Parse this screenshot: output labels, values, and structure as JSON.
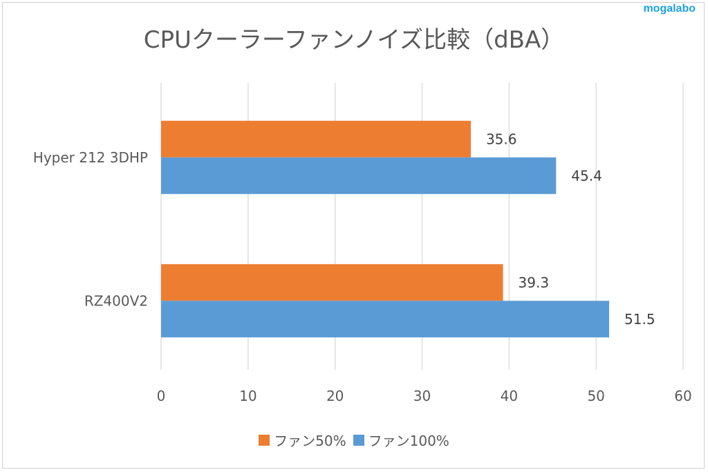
{
  "watermark": "mogalabo",
  "chart_data": {
    "type": "bar",
    "orientation": "horizontal",
    "title": "CPUクーラーファンノイズ比較（dBA）",
    "categories": [
      "Hyper 212 3DHP",
      "RZ400V2"
    ],
    "series": [
      {
        "name": "ファン50%",
        "color": "#ed7d31",
        "values": [
          35.6,
          39.3
        ]
      },
      {
        "name": "ファン100%",
        "color": "#5b9bd5",
        "values": [
          45.4,
          51.5
        ]
      }
    ],
    "xlim": [
      0,
      60
    ],
    "xticks": [
      "0",
      "10",
      "20",
      "30",
      "40",
      "50",
      "60"
    ],
    "grid": true,
    "legend": "bottom",
    "data_labels": true
  }
}
